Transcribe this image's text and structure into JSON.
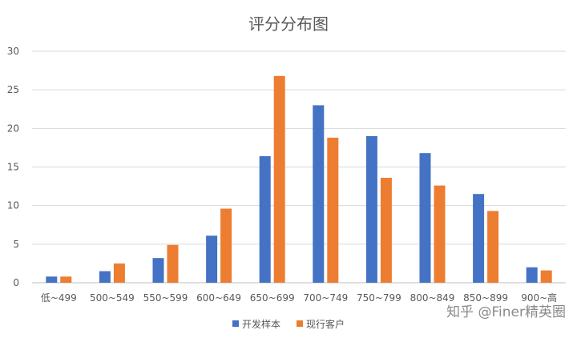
{
  "chart_data": {
    "type": "bar",
    "title": "评分分布图",
    "categories": [
      "低~499",
      "500~549",
      "550~599",
      "600~649",
      "650~699",
      "700~749",
      "750~799",
      "800~849",
      "850~899",
      "900~高"
    ],
    "series": [
      {
        "name": "开发样本",
        "values": [
          0.8,
          1.5,
          3.2,
          6.1,
          16.4,
          23.0,
          19.0,
          16.8,
          11.5,
          2.0
        ],
        "color": "#4472C4"
      },
      {
        "name": "现行客户",
        "values": [
          0.8,
          2.5,
          4.9,
          9.6,
          26.8,
          18.8,
          13.6,
          12.6,
          9.3,
          1.6
        ],
        "color": "#ED7D31"
      }
    ],
    "ylim": [
      0,
      30
    ],
    "yticks": [
      0,
      5,
      10,
      15,
      20,
      25,
      30
    ],
    "grid": true,
    "legend_position": "bottom"
  },
  "watermark": {
    "text": "知乎 @Finer精英圈"
  }
}
